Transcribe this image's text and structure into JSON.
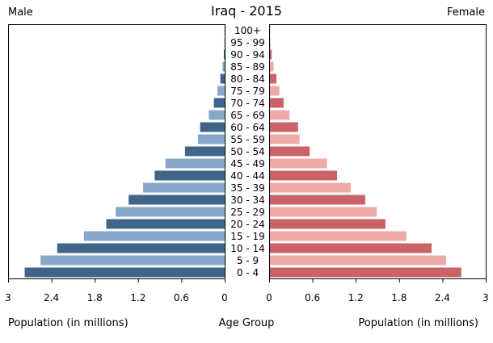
{
  "chart_data": {
    "type": "bar",
    "title": "Iraq - 2015",
    "left_side_label": "Male",
    "right_side_label": "Female",
    "xlabel_left": "Population (in millions)",
    "xlabel_center": "Age Group",
    "xlabel_right": "Population (in millions)",
    "xlim": [
      0,
      3
    ],
    "x_ticks": [
      0,
      0.6,
      1.2,
      1.8,
      2.4,
      3
    ],
    "x_tick_labels": [
      "0",
      "0.6",
      "1.2",
      "1.8",
      "2.4",
      "3"
    ],
    "categories": [
      "100+",
      "95 - 99",
      "90 - 94",
      "85 - 89",
      "80 - 84",
      "75 - 79",
      "70 - 74",
      "65 - 69",
      "60 - 64",
      "55 - 59",
      "50 - 54",
      "45 - 49",
      "40 - 44",
      "35 - 39",
      "30 - 34",
      "25 - 29",
      "20 - 24",
      "15 - 19",
      "10 - 14",
      "5 - 9",
      "0 - 4"
    ],
    "series": [
      {
        "name": "Male",
        "values": [
          0.002,
          0.005,
          0.012,
          0.03,
          0.06,
          0.1,
          0.15,
          0.22,
          0.34,
          0.37,
          0.55,
          0.82,
          0.97,
          1.13,
          1.33,
          1.51,
          1.64,
          1.95,
          2.32,
          2.55,
          2.77
        ]
      },
      {
        "name": "Female",
        "values": [
          0.002,
          0.008,
          0.025,
          0.05,
          0.09,
          0.13,
          0.19,
          0.27,
          0.39,
          0.41,
          0.55,
          0.79,
          0.93,
          1.12,
          1.32,
          1.48,
          1.6,
          1.89,
          2.24,
          2.44,
          2.65
        ]
      }
    ],
    "colors": {
      "male_dark": "#41658a",
      "male_light": "#88a8cb",
      "female_dark": "#c96368",
      "female_light": "#f0a9a9",
      "axis": "#000000"
    },
    "grid": false
  }
}
